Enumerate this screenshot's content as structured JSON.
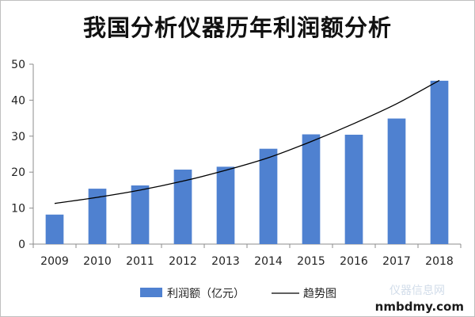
{
  "chart_data": {
    "type": "bar",
    "title": "我国分析仪器历年利润额分析",
    "categories": [
      "2009",
      "2010",
      "2011",
      "2012",
      "2013",
      "2014",
      "2015",
      "2016",
      "2017",
      "2018"
    ],
    "series": [
      {
        "name": "利润额（亿元）",
        "values": [
          8.2,
          15.4,
          16.3,
          20.7,
          21.5,
          26.5,
          30.5,
          30.4,
          34.9,
          45.4
        ]
      }
    ],
    "trendline": {
      "name": "趋势图",
      "type": "polynomial",
      "values": [
        11.3,
        13.0,
        15.0,
        17.5,
        20.5,
        24.0,
        28.5,
        33.5,
        39.0,
        45.5
      ]
    },
    "xlabel": "",
    "ylabel": "",
    "ylim": [
      0,
      50
    ],
    "yticks": [
      "0",
      "10",
      "20",
      "30",
      "40",
      "50"
    ],
    "grid": false,
    "legend": "bottom",
    "colors": {
      "bar": "#4f81d0",
      "trend": "#000000",
      "axis": "#8c8c8c"
    }
  },
  "watermark": {
    "text": "nmbdmy.com",
    "cn_text": "仪器信息网"
  }
}
